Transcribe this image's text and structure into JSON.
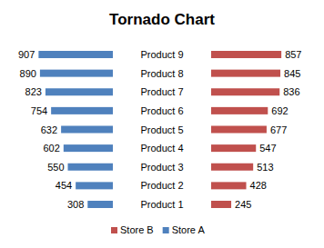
{
  "chart_data": {
    "type": "bar",
    "title": "Tornado Chart",
    "orientation": "horizontal",
    "categories": [
      "Product 1",
      "Product 2",
      "Product 3",
      "Product 4",
      "Product 5",
      "Product 6",
      "Product 7",
      "Product 8",
      "Product 9"
    ],
    "series": [
      {
        "name": "Store A",
        "color": "#4f81bd",
        "values": [
          308,
          454,
          550,
          602,
          632,
          754,
          823,
          890,
          907
        ]
      },
      {
        "name": "Store B",
        "color": "#c0504d",
        "values": [
          245,
          428,
          513,
          547,
          677,
          692,
          836,
          845,
          857
        ]
      }
    ],
    "xlim": [
      0,
      1000
    ],
    "data_labels": true,
    "tick_labels": false,
    "grid": false,
    "legend": "bottom"
  }
}
